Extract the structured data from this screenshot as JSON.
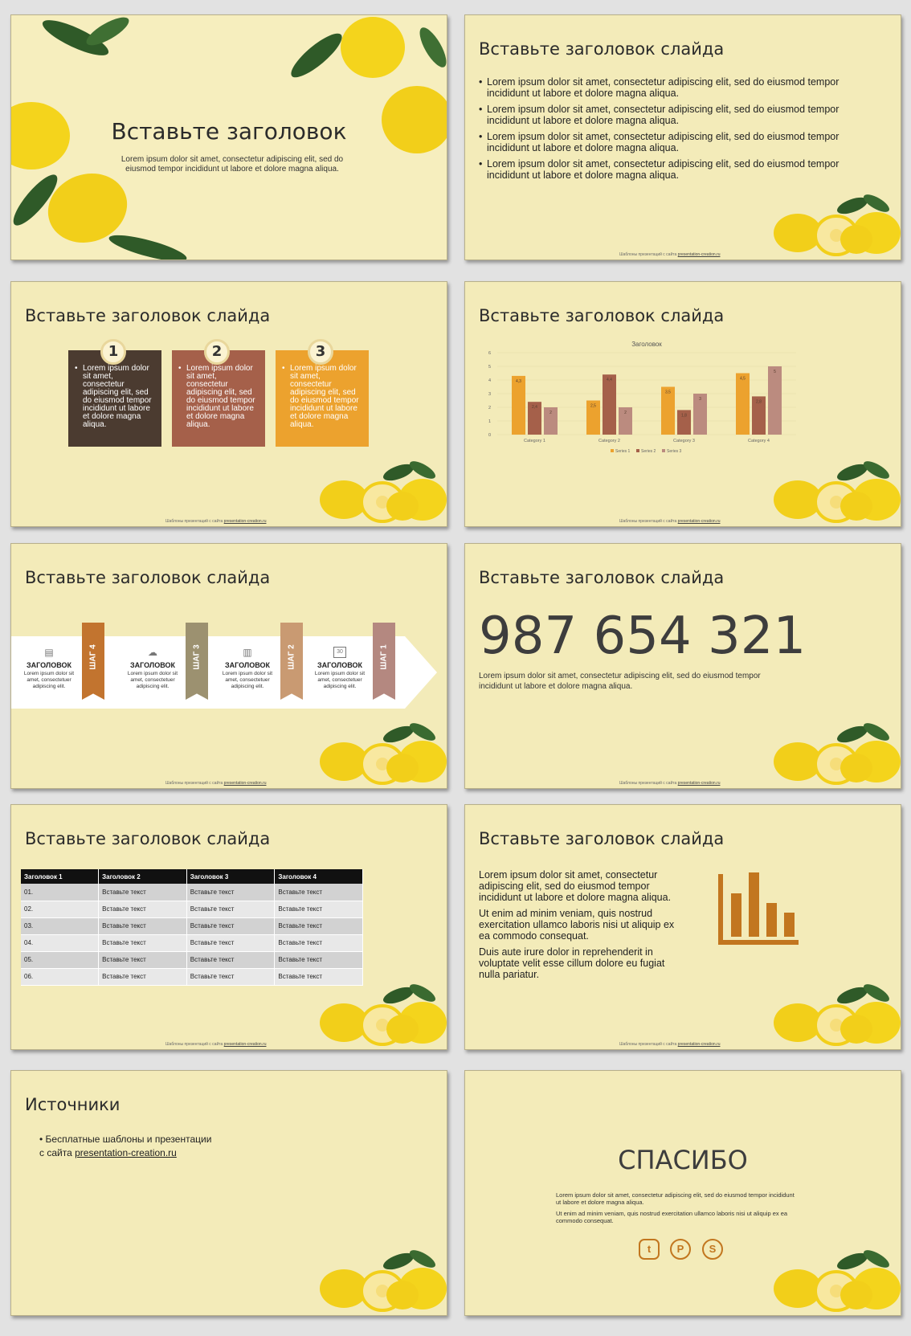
{
  "slide1": {
    "title": "Вставьте заголовок",
    "text": "Lorem ipsum dolor sit amet, consectetur adipiscing elit, sed do eiusmod tempor incididunt ut labore et dolore magna aliqua."
  },
  "slide2": {
    "title": "Вставьте заголовок слайда",
    "bullets": [
      "Lorem ipsum dolor sit amet, consectetur adipiscing elit, sed do eiusmod tempor incididunt ut labore et dolore magna aliqua.",
      "Lorem ipsum dolor sit amet, consectetur adipiscing elit, sed do eiusmod tempor incididunt ut labore et dolore magna aliqua.",
      "Lorem ipsum dolor sit amet, consectetur adipiscing elit, sed do eiusmod tempor incididunt ut labore et dolore magna aliqua.",
      "Lorem ipsum dolor sit amet, consectetur adipiscing elit, sed do eiusmod tempor incididunt ut labore et dolore magna aliqua."
    ]
  },
  "slide3": {
    "title": "Вставьте заголовок слайда",
    "cards": [
      {
        "num": "1",
        "text": "Lorem ipsum dolor sit amet, consectetur adipiscing elit, sed do eiusmod tempor incididunt ut labore et dolore magna aliqua.",
        "color": "#4b3b30"
      },
      {
        "num": "2",
        "text": "Lorem ipsum dolor sit amet, consectetur adipiscing elit, sed do eiusmod tempor incididunt ut labore et dolore magna aliqua.",
        "color": "#a5604a"
      },
      {
        "num": "3",
        "text": "Lorem ipsum dolor sit amet, consectetur adipiscing elit, sed do eiusmod tempor incididunt ut labore et dolore magna aliqua.",
        "color": "#eca22e"
      }
    ]
  },
  "slide4": {
    "title": "Вставьте заголовок слайда"
  },
  "chart_data": {
    "type": "bar",
    "title": "Заголовок",
    "categories": [
      "Category 1",
      "Category 2",
      "Category 3",
      "Category 4"
    ],
    "series": [
      {
        "name": "Series 1",
        "values": [
          4.3,
          2.5,
          3.5,
          4.5
        ],
        "color": "#eca22e"
      },
      {
        "name": "Series 2",
        "values": [
          2.4,
          4.4,
          1.8,
          2.8
        ],
        "color": "#a5604a"
      },
      {
        "name": "Series 3",
        "values": [
          2,
          2,
          3,
          5
        ],
        "color": "#bb8b7f"
      }
    ],
    "y_ticks": [
      "0",
      "1",
      "2",
      "3",
      "4",
      "5",
      "6"
    ],
    "ylim": [
      0,
      6
    ],
    "grid": true,
    "legend": "bottom"
  },
  "slide5": {
    "title": "Вставьте заголовок слайда",
    "steps": [
      {
        "head": "ЗАГОЛОВОК",
        "text": "Lorem ipsum dolor sit amet, consectetuer adipiscing elit.",
        "icon": "document-icon",
        "glyph": "▤"
      },
      {
        "head": "ЗАГОЛОВОК",
        "text": "Lorem ipsum dolor sit amet, consectetuer adipiscing elit.",
        "icon": "cloud-icon",
        "glyph": "☁"
      },
      {
        "head": "ЗАГОЛОВОК",
        "text": "Lorem ipsum dolor sit amet, consectetuer adipiscing elit.",
        "icon": "books-icon",
        "glyph": "▥"
      },
      {
        "head": "ЗАГОЛОВОК",
        "text": "Lorem ipsum dolor sit amet, consectetuer adipiscing elit.",
        "icon": "calendar-icon",
        "glyph": "30"
      }
    ],
    "ribbons": [
      {
        "label": "ШАГ 4",
        "color": "#c2742f"
      },
      {
        "label": "ШАГ 3",
        "color": "#9c9170"
      },
      {
        "label": "ШАГ 2",
        "color": "#c99a72"
      },
      {
        "label": "ШАГ 1",
        "color": "#b48880"
      }
    ]
  },
  "slide6": {
    "title": "Вставьте заголовок слайда",
    "number": "987 654 321",
    "text": "Lorem ipsum dolor sit amet, consectetur adipiscing elit, sed do eiusmod tempor incididunt ut labore et dolore magna aliqua."
  },
  "slide7": {
    "title": "Вставьте заголовок слайда",
    "headers": [
      "Заголовок 1",
      "Заголовок 2",
      "Заголовок 3",
      "Заголовок 4"
    ],
    "rows": [
      [
        "01.",
        "Вставьте текст",
        "Вставьте текст",
        "Вставьте текст"
      ],
      [
        "02.",
        "Вставьте текст",
        "Вставьте текст",
        "Вставьте текст"
      ],
      [
        "03.",
        "Вставьте текст",
        "Вставьте текст",
        "Вставьте текст"
      ],
      [
        "04.",
        "Вставьте текст",
        "Вставьте текст",
        "Вставьте текст"
      ],
      [
        "05.",
        "Вставьте текст",
        "Вставьте текст",
        "Вставьте текст"
      ],
      [
        "06.",
        "Вставьте текст",
        "Вставьте текст",
        "Вставьте текст"
      ]
    ]
  },
  "slide8": {
    "title": "Вставьте заголовок слайда",
    "paragraphs": [
      "Lorem ipsum dolor sit amet, consectetur adipiscing elit, sed do eiusmod tempor incididunt ut labore et dolore magna aliqua.",
      "Ut enim ad minim veniam, quis nostrud exercitation ullamco laboris nisi ut aliquip ex ea commodo consequat.",
      "Duis aute irure dolor in reprehenderit in voluptate velit esse cillum dolore eu fugiat nulla pariatur."
    ]
  },
  "slide9": {
    "title": "Источники",
    "line1": "Бесплатные шаблоны и презентации",
    "line2_prefix": "с сайта ",
    "link": "presentation-creation.ru"
  },
  "slide10": {
    "title": "СПАСИБО",
    "text1": "Lorem ipsum dolor sit amet, consectetur adipiscing elit, sed do eiusmod tempor incididunt ut labore et dolore magna aliqua.",
    "text2": "Ut enim ad minim veniam, quis nostrud exercitation ullamco laboris nisi ut aliquip ex ea commodo consequat.",
    "social": [
      {
        "icon": "twitter-icon",
        "glyph": "t"
      },
      {
        "icon": "pinterest-icon",
        "glyph": "P"
      },
      {
        "icon": "skype-icon",
        "glyph": "S"
      }
    ]
  },
  "footer": {
    "prefix": "Шаблоны презентаций с сайта ",
    "link": "presentation-creation.ru"
  },
  "colors": {
    "background": "#f3ebb9",
    "accent": "#c2761f"
  }
}
